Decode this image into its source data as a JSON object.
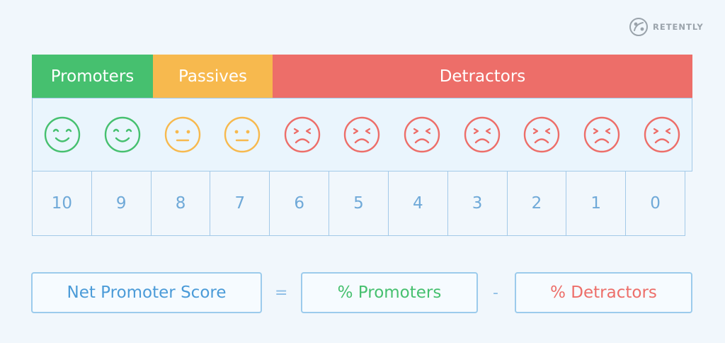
{
  "brand": {
    "logo_text": "RETENTLY",
    "logo_icon": "retently-logo-icon"
  },
  "colors": {
    "promoter": "#46c06f",
    "passive": "#f7b94e",
    "detractor": "#ed6e69",
    "accent": "#4b9bd8",
    "border": "#a3c9e8"
  },
  "categories": [
    {
      "label": "Promoters",
      "scores": [
        10,
        9
      ]
    },
    {
      "label": "Passives",
      "scores": [
        8,
        7
      ]
    },
    {
      "label": "Detractors",
      "scores": [
        6,
        5,
        4,
        3,
        2,
        1,
        0
      ]
    }
  ],
  "faces": [
    {
      "score": "10",
      "mood": "happy"
    },
    {
      "score": "9",
      "mood": "happy"
    },
    {
      "score": "8",
      "mood": "neutral"
    },
    {
      "score": "7",
      "mood": "neutral"
    },
    {
      "score": "6",
      "mood": "sad"
    },
    {
      "score": "5",
      "mood": "sad"
    },
    {
      "score": "4",
      "mood": "sad"
    },
    {
      "score": "3",
      "mood": "sad"
    },
    {
      "score": "2",
      "mood": "sad"
    },
    {
      "score": "1",
      "mood": "sad"
    },
    {
      "score": "0",
      "mood": "sad"
    }
  ],
  "formula": {
    "result": "Net Promoter Score",
    "equals": "=",
    "term1": "% Promoters",
    "minus": "-",
    "term2": "% Detractors"
  }
}
